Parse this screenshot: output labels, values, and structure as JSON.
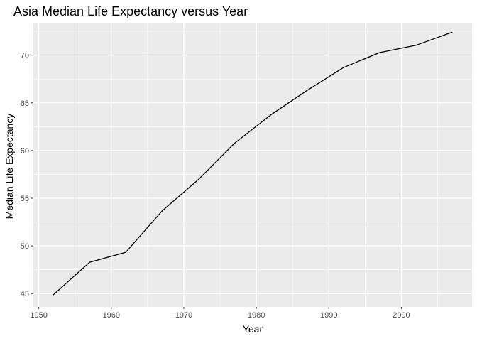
{
  "chart_data": {
    "type": "line",
    "title": "Asia Median Life Expectancy versus Year",
    "xlabel": "Year",
    "ylabel": "Median Life Expectancy",
    "xlim": [
      1949.25,
      2009.75
    ],
    "ylim": [
      43.6,
      73.4
    ],
    "x_ticks": [
      1950,
      1960,
      1970,
      1980,
      1990,
      2000
    ],
    "y_ticks": [
      45,
      50,
      55,
      60,
      65,
      70
    ],
    "grid": true,
    "legend": "none",
    "colors": {
      "panel": "#ebebeb",
      "grid": "#ffffff",
      "line": "#000000"
    },
    "series": [
      {
        "x": [
          1952,
          1957,
          1962,
          1967,
          1972,
          1977,
          1982,
          1987,
          1992,
          1997,
          2002,
          2007
        ],
        "values": [
          44.87,
          48.28,
          49.33,
          53.66,
          56.95,
          60.77,
          63.74,
          66.3,
          68.69,
          70.27,
          71.03,
          72.4
        ]
      }
    ]
  }
}
